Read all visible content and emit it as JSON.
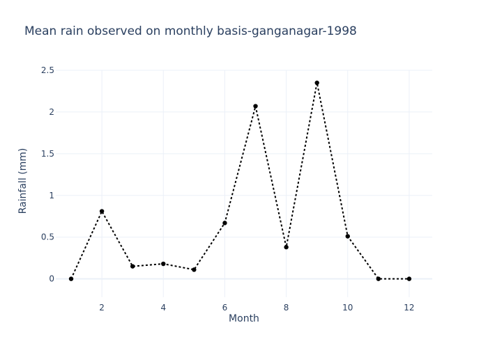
{
  "chart_data": {
    "type": "line",
    "title": "Mean rain observed on monthly basis-ganganagar-1998",
    "xlabel": "Month",
    "ylabel": "Rainfall (mm)",
    "x": [
      1,
      2,
      3,
      4,
      5,
      6,
      7,
      8,
      9,
      10,
      11,
      12
    ],
    "series": [
      {
        "values": [
          0.0,
          0.81,
          0.15,
          0.18,
          0.11,
          0.67,
          2.07,
          0.38,
          2.35,
          0.51,
          0.0,
          0.0
        ]
      }
    ],
    "xlim": [
      0.5,
      12.75
    ],
    "ylim": [
      -0.22,
      2.5
    ],
    "x_ticks": [
      2,
      4,
      6,
      8,
      10,
      12
    ],
    "x_tick_labels": [
      "2",
      "4",
      "6",
      "8",
      "10",
      "12"
    ],
    "y_ticks": [
      0,
      0.5,
      1,
      1.5,
      2,
      2.5
    ],
    "y_tick_labels": [
      "0",
      "0.5",
      "1",
      "1.5",
      "2",
      "2.5"
    ],
    "grid": true,
    "line_color": "#000000",
    "line_style": "dotted",
    "marker_color": "#000000",
    "text_color": "#2a3f5f",
    "grid_color": "#ebf0f8"
  }
}
